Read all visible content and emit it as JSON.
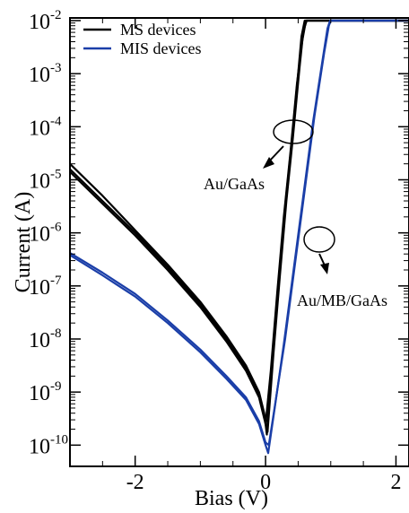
{
  "chart_data": {
    "type": "line",
    "title": "",
    "xlabel": "Bias (V)",
    "ylabel": "Current (A)",
    "xlim": [
      -3,
      2.2
    ],
    "ylim_log10": [
      -10.4,
      -1.95
    ],
    "yscale": "log",
    "x_ticks": [
      {
        "value": -2,
        "label": "-2"
      },
      {
        "value": 0,
        "label": "0"
      },
      {
        "value": 2,
        "label": "2"
      }
    ],
    "y_ticks": [
      {
        "exp": -2,
        "base": "10",
        "sup": "-2"
      },
      {
        "exp": -3,
        "base": "10",
        "sup": "-3"
      },
      {
        "exp": -4,
        "base": "10",
        "sup": "-4"
      },
      {
        "exp": -5,
        "base": "10",
        "sup": "-5"
      },
      {
        "exp": -6,
        "base": "10",
        "sup": "-6"
      },
      {
        "exp": -7,
        "base": "10",
        "sup": "-7"
      },
      {
        "exp": -8,
        "base": "10",
        "sup": "-8"
      },
      {
        "exp": -9,
        "base": "10",
        "sup": "-9"
      },
      {
        "exp": -10,
        "base": "10",
        "sup": "-10"
      }
    ],
    "legend": {
      "placement": "top-left",
      "entries": [
        {
          "name": "MS devices",
          "color": "#000000"
        },
        {
          "name": "MIS devices",
          "color": "#1a3ea8"
        }
      ]
    },
    "series": [
      {
        "name": "MS devices",
        "color": "#000000",
        "curves": [
          [
            [
              -3.0,
              -4.7
            ],
            [
              -2.5,
              -5.3
            ],
            [
              -2.0,
              -5.95
            ],
            [
              -1.5,
              -6.6
            ],
            [
              -1.0,
              -7.3
            ],
            [
              -0.6,
              -7.95
            ],
            [
              -0.3,
              -8.5
            ],
            [
              -0.1,
              -9.0
            ],
            [
              -0.02,
              -9.4
            ],
            [
              0.02,
              -9.8
            ],
            [
              0.1,
              -8.4
            ],
            [
              0.2,
              -6.9
            ],
            [
              0.3,
              -5.5
            ],
            [
              0.4,
              -4.3
            ],
            [
              0.5,
              -3.0
            ],
            [
              0.55,
              -2.3
            ],
            [
              0.6,
              -2.0
            ],
            [
              0.8,
              -2.0
            ],
            [
              2.2,
              -2.0
            ]
          ],
          [
            [
              -3.0,
              -4.85
            ],
            [
              -2.5,
              -5.45
            ],
            [
              -2.0,
              -6.05
            ],
            [
              -1.5,
              -6.7
            ],
            [
              -1.0,
              -7.4
            ],
            [
              -0.6,
              -8.05
            ],
            [
              -0.3,
              -8.6
            ],
            [
              -0.1,
              -9.1
            ],
            [
              -0.02,
              -9.5
            ],
            [
              0.03,
              -9.75
            ],
            [
              0.12,
              -8.3
            ],
            [
              0.22,
              -6.8
            ],
            [
              0.32,
              -5.4
            ],
            [
              0.42,
              -4.2
            ],
            [
              0.52,
              -2.9
            ],
            [
              0.58,
              -2.2
            ],
            [
              0.63,
              -2.0
            ],
            [
              2.2,
              -2.0
            ]
          ],
          [
            [
              -3.0,
              -4.8
            ],
            [
              -2.5,
              -5.4
            ],
            [
              -2.0,
              -6.0
            ],
            [
              -1.5,
              -6.65
            ],
            [
              -1.0,
              -7.35
            ],
            [
              -0.6,
              -8.0
            ],
            [
              -0.3,
              -8.55
            ],
            [
              -0.1,
              -9.05
            ],
            [
              -0.02,
              -9.45
            ],
            [
              0.0,
              -9.6
            ],
            [
              0.08,
              -8.6
            ],
            [
              0.18,
              -7.1
            ],
            [
              0.28,
              -5.7
            ],
            [
              0.38,
              -4.5
            ],
            [
              0.48,
              -3.2
            ],
            [
              0.56,
              -2.4
            ],
            [
              0.62,
              -2.0
            ],
            [
              2.2,
              -2.0
            ]
          ]
        ]
      },
      {
        "name": "MIS devices",
        "color": "#1a3ea8",
        "curves": [
          [
            [
              -3.0,
              -6.38
            ],
            [
              -2.5,
              -6.75
            ],
            [
              -2.0,
              -7.15
            ],
            [
              -1.5,
              -7.65
            ],
            [
              -1.0,
              -8.2
            ],
            [
              -0.6,
              -8.7
            ],
            [
              -0.3,
              -9.1
            ],
            [
              -0.1,
              -9.55
            ],
            [
              0.0,
              -9.95
            ],
            [
              0.05,
              -10.0
            ],
            [
              0.15,
              -9.2
            ],
            [
              0.3,
              -8.0
            ],
            [
              0.45,
              -6.6
            ],
            [
              0.6,
              -5.2
            ],
            [
              0.75,
              -3.8
            ],
            [
              0.9,
              -2.6
            ],
            [
              0.97,
              -2.1
            ],
            [
              1.0,
              -2.0
            ],
            [
              2.2,
              -2.0
            ]
          ],
          [
            [
              -3.0,
              -6.42
            ],
            [
              -2.5,
              -6.8
            ],
            [
              -2.0,
              -7.2
            ],
            [
              -1.5,
              -7.7
            ],
            [
              -1.0,
              -8.25
            ],
            [
              -0.6,
              -8.75
            ],
            [
              -0.3,
              -9.15
            ],
            [
              -0.1,
              -9.6
            ],
            [
              0.0,
              -10.0
            ],
            [
              0.04,
              -10.15
            ],
            [
              0.14,
              -9.3
            ],
            [
              0.28,
              -8.1
            ],
            [
              0.43,
              -6.7
            ],
            [
              0.58,
              -5.3
            ],
            [
              0.73,
              -3.9
            ],
            [
              0.88,
              -2.7
            ],
            [
              0.95,
              -2.15
            ],
            [
              0.99,
              -2.0
            ],
            [
              2.2,
              -2.0
            ]
          ]
        ]
      }
    ],
    "annotations": [
      {
        "text": "Au/GaAs",
        "target": "MS devices"
      },
      {
        "text": "Au/MB/GaAs",
        "target": "MIS devices"
      }
    ]
  }
}
